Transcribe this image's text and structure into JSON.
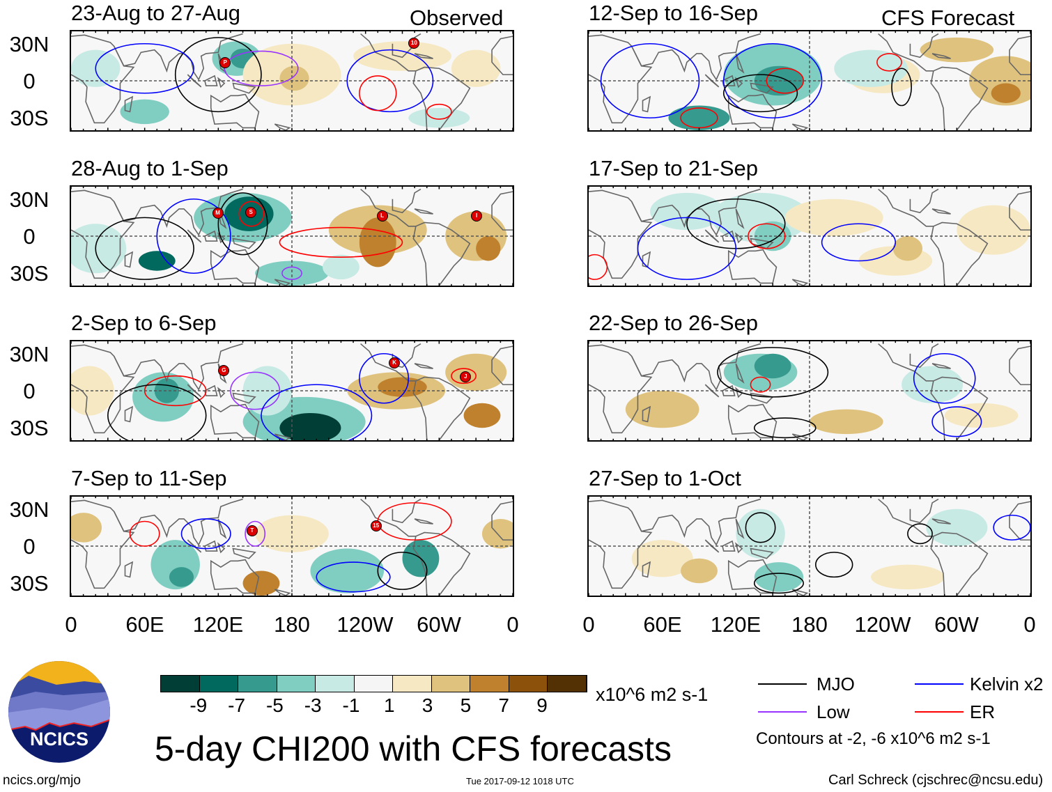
{
  "labels": {
    "observed": "Observed",
    "forecast": "CFS Forecast",
    "lat": [
      "30N",
      "0",
      "30S"
    ],
    "lon": [
      "0",
      "60E",
      "120E",
      "180",
      "120W",
      "60W",
      "0"
    ]
  },
  "colorbar": {
    "ticks": [
      "-9",
      "-7",
      "-5",
      "-3",
      "-1",
      "1",
      "3",
      "5",
      "7",
      "9"
    ],
    "colors": [
      "#013f36",
      "#02695f",
      "#369a8e",
      "#80cdc1",
      "#c7eae5",
      "#f5f5f5",
      "#f6e8c3",
      "#dfc27d",
      "#bf812d",
      "#8c510a",
      "#543005"
    ],
    "units": "x10^6 m2 s-1"
  },
  "title": "5-day CHI200 with CFS forecasts",
  "legend": {
    "mjo": "MJO",
    "kelvin": "Kelvin x2",
    "low": "Low",
    "er": "ER",
    "contours": "Contours at -2, -6 x10^6 m2 s-1",
    "colors": {
      "mjo": "#000000",
      "kelvin": "#0000ff",
      "low": "#9933ff",
      "er": "#ff0000"
    }
  },
  "footer": {
    "url": "ncics.org/mjo",
    "timestamp": "Tue 2017-09-12 1018 UTC",
    "author": "Carl Schreck (cjschrec@ncsu.edu)",
    "logo": "NCICS"
  },
  "chart_data": {
    "type": "heatmap",
    "variable": "5-day CHI200 anomaly",
    "lat_range": [
      -40,
      40
    ],
    "lon_range": [
      0,
      360
    ],
    "panels": [
      {
        "title": "23-Aug to 27-Aug",
        "kind": "observed",
        "blobs": [
          [
            135,
            18,
            20,
            14,
            -4
          ],
          [
            140,
            18,
            10,
            8,
            -6
          ],
          [
            60,
            -25,
            20,
            10,
            -4
          ],
          [
            20,
            10,
            20,
            15,
            -2
          ],
          [
            180,
            5,
            40,
            25,
            2
          ],
          [
            182,
            2,
            12,
            10,
            4
          ],
          [
            270,
            20,
            40,
            12,
            2
          ],
          [
            330,
            10,
            20,
            15,
            2
          ],
          [
            300,
            -30,
            25,
            8,
            -2
          ]
        ],
        "contours": [
          [
            "mjo",
            120,
            5,
            35,
            30
          ],
          [
            "low",
            155,
            10,
            30,
            14
          ],
          [
            "kelvin",
            260,
            0,
            35,
            25
          ],
          [
            "er",
            250,
            -10,
            15,
            14
          ],
          [
            "kelvin",
            60,
            10,
            40,
            20
          ],
          [
            "er",
            300,
            -25,
            10,
            6
          ]
        ],
        "storms": [
          [
            "P",
            125,
            15
          ],
          [
            "10",
            279,
            31
          ]
        ]
      },
      {
        "title": "28-Aug to 1-Sep",
        "kind": "observed",
        "blobs": [
          [
            140,
            15,
            40,
            20,
            -4
          ],
          [
            145,
            18,
            20,
            14,
            -8
          ],
          [
            70,
            -20,
            15,
            8,
            -8
          ],
          [
            180,
            -30,
            30,
            10,
            -4
          ],
          [
            250,
            5,
            40,
            20,
            4
          ],
          [
            250,
            -5,
            15,
            20,
            6
          ],
          [
            330,
            0,
            25,
            20,
            4
          ],
          [
            340,
            -10,
            10,
            10,
            6
          ],
          [
            20,
            -10,
            25,
            20,
            -2
          ],
          [
            220,
            -25,
            15,
            10,
            -2
          ]
        ],
        "contours": [
          [
            "mjo",
            140,
            10,
            20,
            25
          ],
          [
            "er",
            147,
            18,
            10,
            10
          ],
          [
            "kelvin",
            100,
            0,
            30,
            30
          ],
          [
            "er",
            220,
            -5,
            50,
            12
          ],
          [
            "mjo",
            60,
            -10,
            40,
            25
          ],
          [
            "low",
            180,
            -30,
            8,
            5
          ]
        ],
        "storms": [
          [
            "M",
            119,
            19
          ],
          [
            "S",
            146,
            20
          ],
          [
            "L",
            253,
            17
          ],
          [
            "I",
            330,
            17
          ]
        ]
      },
      {
        "title": "2-Sep to 6-Sep",
        "kind": "observed",
        "blobs": [
          [
            75,
            -5,
            25,
            20,
            -4
          ],
          [
            78,
            0,
            10,
            10,
            -6
          ],
          [
            190,
            -25,
            50,
            20,
            -4
          ],
          [
            195,
            -30,
            25,
            12,
            -10
          ],
          [
            265,
            0,
            40,
            15,
            4
          ],
          [
            270,
            3,
            20,
            8,
            7
          ],
          [
            330,
            15,
            25,
            15,
            4
          ],
          [
            335,
            -20,
            15,
            10,
            6
          ],
          [
            15,
            0,
            20,
            20,
            2
          ],
          [
            160,
            0,
            20,
            20,
            -2
          ]
        ],
        "contours": [
          [
            "er",
            85,
            0,
            25,
            12
          ],
          [
            "mjo",
            70,
            -20,
            40,
            25
          ],
          [
            "low",
            150,
            0,
            20,
            15
          ],
          [
            "kelvin",
            200,
            -20,
            45,
            25
          ],
          [
            "er",
            320,
            12,
            10,
            6
          ],
          [
            "kelvin",
            255,
            10,
            20,
            20
          ]
        ],
        "storms": [
          [
            "G",
            124,
            17
          ],
          [
            "K",
            263,
            23
          ],
          [
            "J",
            321,
            12
          ]
        ]
      },
      {
        "title": "7-Sep to 11-Sep",
        "kind": "observed",
        "blobs": [
          [
            85,
            -15,
            20,
            20,
            -4
          ],
          [
            90,
            -25,
            10,
            8,
            -6
          ],
          [
            225,
            -20,
            30,
            18,
            -4
          ],
          [
            285,
            -10,
            15,
            15,
            -6
          ],
          [
            155,
            -30,
            15,
            10,
            6
          ],
          [
            10,
            15,
            15,
            12,
            4
          ],
          [
            350,
            10,
            15,
            12,
            4
          ],
          [
            180,
            10,
            30,
            15,
            2
          ]
        ],
        "contours": [
          [
            "er",
            60,
            10,
            12,
            10
          ],
          [
            "kelvin",
            110,
            10,
            20,
            12
          ],
          [
            "low",
            150,
            10,
            8,
            10
          ],
          [
            "kelvin",
            230,
            -25,
            30,
            12
          ],
          [
            "er",
            280,
            20,
            30,
            15
          ],
          [
            "mjo",
            270,
            -20,
            20,
            15
          ]
        ],
        "storms": [
          [
            "T",
            147,
            13
          ],
          [
            "15",
            248,
            17
          ]
        ]
      },
      {
        "title": "12-Sep to 16-Sep",
        "kind": "forecast",
        "blobs": [
          [
            150,
            5,
            40,
            25,
            -4
          ],
          [
            155,
            0,
            20,
            12,
            -6
          ],
          [
            90,
            -30,
            25,
            10,
            -6
          ],
          [
            240,
            5,
            30,
            15,
            2
          ],
          [
            340,
            0,
            30,
            20,
            4
          ],
          [
            340,
            -10,
            12,
            8,
            6
          ],
          [
            230,
            10,
            30,
            15,
            -2
          ],
          [
            300,
            25,
            30,
            10,
            4
          ]
        ],
        "contours": [
          [
            "kelvin",
            150,
            0,
            40,
            30
          ],
          [
            "er",
            160,
            0,
            15,
            10
          ],
          [
            "er",
            90,
            -30,
            15,
            8
          ],
          [
            "mjo",
            140,
            -10,
            30,
            15
          ],
          [
            "er",
            245,
            15,
            10,
            7
          ],
          [
            "mjo",
            255,
            -5,
            8,
            15
          ],
          [
            "kelvin",
            50,
            0,
            40,
            30
          ]
        ],
        "storms": []
      },
      {
        "title": "17-Sep to 21-Sep",
        "kind": "forecast",
        "blobs": [
          [
            140,
            15,
            40,
            20,
            -2
          ],
          [
            150,
            0,
            15,
            12,
            -4
          ],
          [
            80,
            20,
            30,
            15,
            -2
          ],
          [
            250,
            -20,
            30,
            12,
            2
          ],
          [
            260,
            -10,
            12,
            10,
            4
          ],
          [
            330,
            5,
            30,
            20,
            2
          ],
          [
            200,
            15,
            40,
            15,
            2
          ]
        ],
        "contours": [
          [
            "er",
            145,
            0,
            15,
            10
          ],
          [
            "mjo",
            120,
            10,
            40,
            20
          ],
          [
            "kelvin",
            220,
            -5,
            30,
            15
          ],
          [
            "kelvin",
            80,
            -10,
            40,
            25
          ],
          [
            "er",
            5,
            -25,
            10,
            10
          ]
        ],
        "storms": []
      },
      {
        "title": "22-Sep to 26-Sep",
        "kind": "forecast",
        "blobs": [
          [
            140,
            15,
            30,
            15,
            -4
          ],
          [
            150,
            20,
            15,
            10,
            -6
          ],
          [
            280,
            5,
            25,
            15,
            -2
          ],
          [
            210,
            -25,
            30,
            10,
            4
          ],
          [
            60,
            -15,
            30,
            15,
            4
          ],
          [
            320,
            -20,
            30,
            10,
            2
          ]
        ],
        "contours": [
          [
            "mjo",
            150,
            15,
            45,
            20
          ],
          [
            "er",
            140,
            5,
            8,
            6
          ],
          [
            "kelvin",
            290,
            10,
            25,
            20
          ],
          [
            "mjo",
            160,
            -30,
            25,
            8
          ],
          [
            "kelvin",
            300,
            -25,
            20,
            12
          ]
        ],
        "storms": []
      },
      {
        "title": "27-Sep to 1-Oct",
        "kind": "forecast",
        "blobs": [
          [
            140,
            10,
            20,
            20,
            -2
          ],
          [
            155,
            -25,
            20,
            12,
            -4
          ],
          [
            60,
            -10,
            25,
            15,
            2
          ],
          [
            90,
            -20,
            15,
            10,
            4
          ],
          [
            260,
            -25,
            30,
            10,
            2
          ],
          [
            300,
            15,
            25,
            15,
            -2
          ]
        ],
        "contours": [
          [
            "mjo",
            140,
            15,
            12,
            12
          ],
          [
            "mjo",
            200,
            -15,
            15,
            10
          ],
          [
            "mjo",
            155,
            -30,
            20,
            8
          ],
          [
            "kelvin",
            345,
            15,
            15,
            10
          ],
          [
            "mjo",
            270,
            10,
            10,
            8
          ]
        ],
        "storms": []
      }
    ]
  }
}
